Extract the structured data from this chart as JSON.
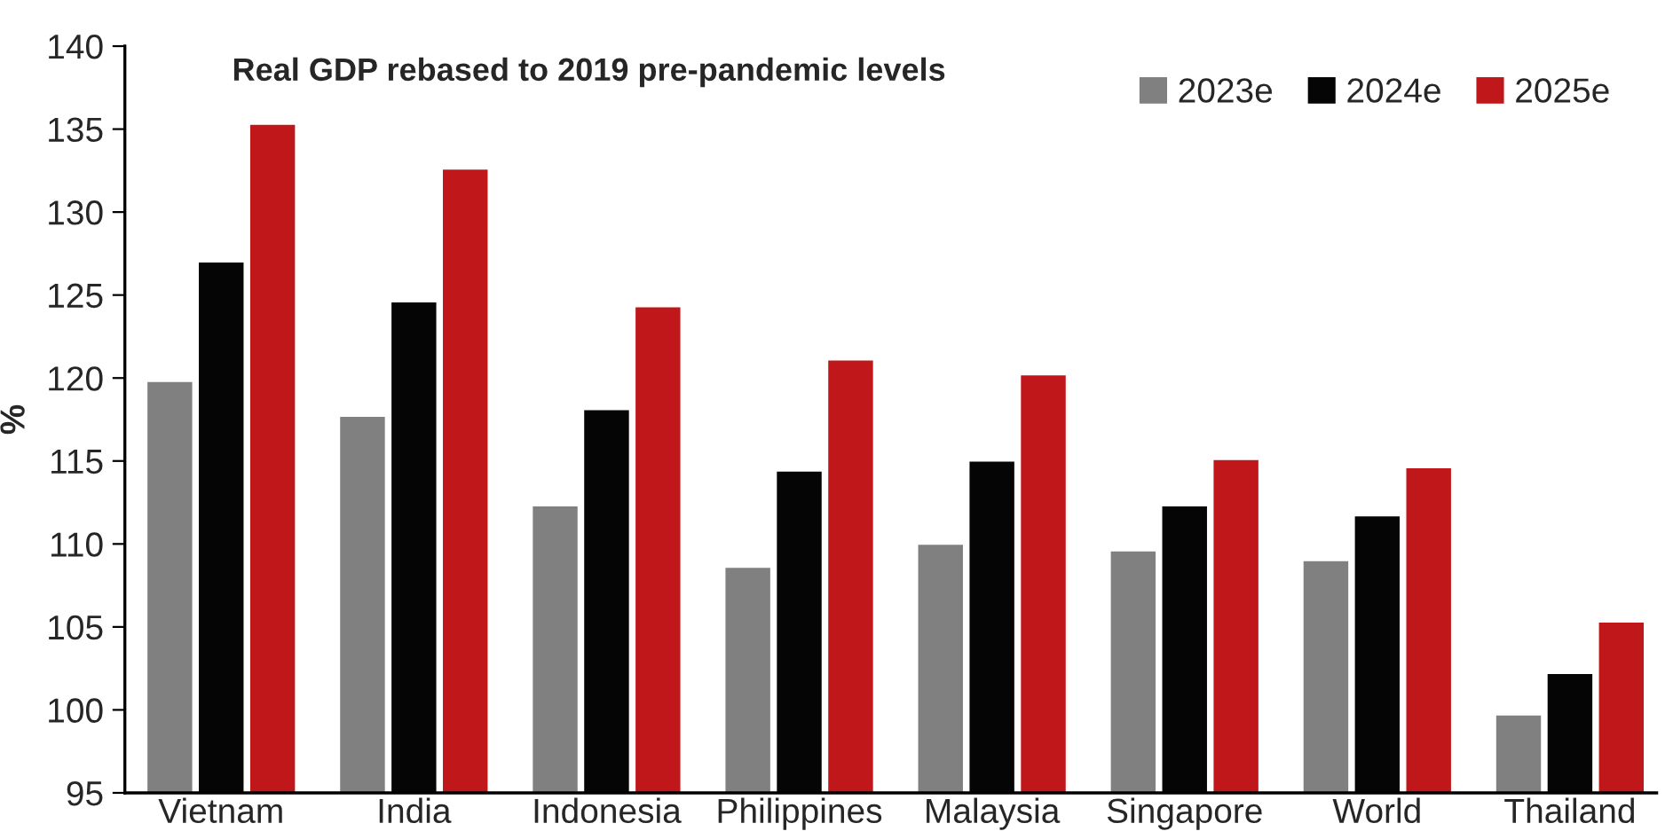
{
  "chart_data": {
    "type": "bar",
    "title": "Real GDP rebased to 2019 pre-pandemic levels",
    "ylabel": "%",
    "categories": [
      "Vietnam",
      "India",
      "Indonesia",
      "Philippines",
      "Malaysia",
      "Singapore",
      "World",
      "Thailand"
    ],
    "series": [
      {
        "name": "2023e",
        "color": "#808080",
        "values": [
          119.8,
          117.7,
          112.3,
          108.6,
          110.0,
          109.6,
          109.0,
          99.7
        ]
      },
      {
        "name": "2024e",
        "color": "#050505",
        "values": [
          127.0,
          124.6,
          118.1,
          114.4,
          115.0,
          112.3,
          111.7,
          102.2
        ]
      },
      {
        "name": "2025e",
        "color": "#c0181a",
        "values": [
          135.3,
          132.6,
          124.3,
          121.1,
          120.2,
          115.1,
          114.6,
          105.3
        ]
      }
    ],
    "ylim": [
      95,
      140
    ],
    "yticks": [
      95,
      100,
      105,
      110,
      115,
      120,
      125,
      130,
      135,
      140
    ],
    "grid": false,
    "legend": "top right"
  }
}
